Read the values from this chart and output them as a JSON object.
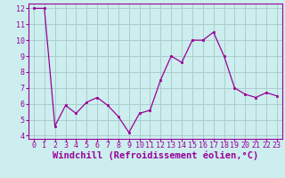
{
  "x": [
    0,
    1,
    2,
    3,
    4,
    5,
    6,
    7,
    8,
    9,
    10,
    11,
    12,
    13,
    14,
    15,
    16,
    17,
    18,
    19,
    20,
    21,
    22,
    23
  ],
  "y": [
    12,
    12,
    4.6,
    5.9,
    5.4,
    6.1,
    6.4,
    5.9,
    5.2,
    4.2,
    5.4,
    5.6,
    7.5,
    9.0,
    8.6,
    10.0,
    10.0,
    10.5,
    9.0,
    7.0,
    6.6,
    6.4,
    6.7,
    6.5
  ],
  "line_color": "#990099",
  "marker_color": "#990099",
  "bg_color": "#cceeee",
  "grid_color": "#aacccc",
  "axis_color": "#990099",
  "tick_color": "#990099",
  "xlabel": "Windchill (Refroidissement éolien,°C)",
  "xlim": [
    -0.5,
    23.5
  ],
  "ylim": [
    3.8,
    12.3
  ],
  "yticks": [
    4,
    5,
    6,
    7,
    8,
    9,
    10,
    11,
    12
  ],
  "xticks": [
    0,
    1,
    2,
    3,
    4,
    5,
    6,
    7,
    8,
    9,
    10,
    11,
    12,
    13,
    14,
    15,
    16,
    17,
    18,
    19,
    20,
    21,
    22,
    23
  ],
  "tick_fontsize": 6,
  "label_fontsize": 7.5
}
